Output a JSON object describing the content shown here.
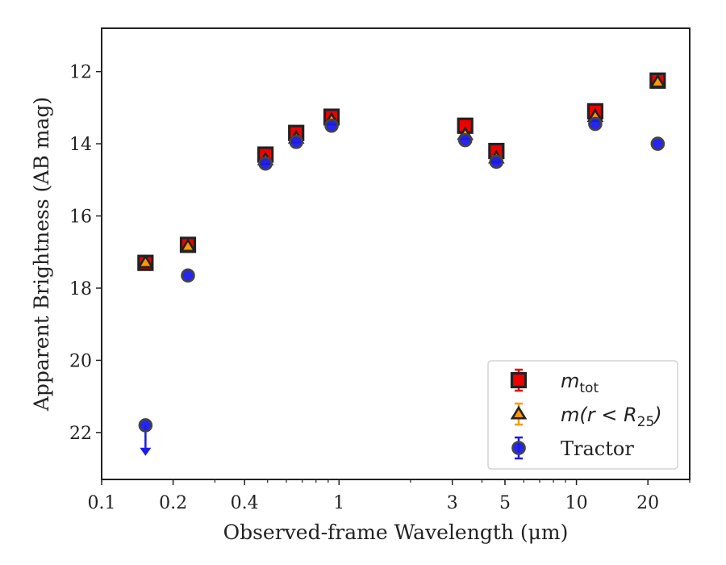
{
  "chart_data": {
    "type": "scatter",
    "title": "",
    "xlabel": "Observed-frame Wavelength (μm)",
    "ylabel": "Apparent Brightness (AB mag)",
    "xscale": "log",
    "xlim": [
      0.1,
      30
    ],
    "ylim": [
      23.3,
      10.8
    ],
    "y_inverted": true,
    "x_ticks": [
      {
        "value": 0.1,
        "label": "0.1"
      },
      {
        "value": 0.2,
        "label": "0.2"
      },
      {
        "value": 0.4,
        "label": "0.4"
      },
      {
        "value": 1,
        "label": "1"
      },
      {
        "value": 3,
        "label": "3"
      },
      {
        "value": 5,
        "label": "5"
      },
      {
        "value": 10,
        "label": "10"
      },
      {
        "value": 20,
        "label": "20"
      }
    ],
    "y_ticks": [
      12,
      14,
      16,
      18,
      20,
      22
    ],
    "legend_position": "lower-right",
    "series": [
      {
        "name": "m_tot",
        "label_main": "m",
        "label_sub": "tot",
        "marker": "square",
        "color": "#ee0000",
        "edge_color": "#222222",
        "x": [
          0.153,
          0.231,
          0.49,
          0.66,
          0.93,
          3.4,
          4.6,
          12.0,
          22.0
        ],
        "y": [
          17.3,
          16.8,
          14.3,
          13.7,
          13.25,
          13.5,
          14.2,
          13.1,
          12.25
        ]
      },
      {
        "name": "m(r<R_25)",
        "label_main": "m(r < R",
        "label_sub": "25",
        "label_end": ")",
        "marker": "triangle",
        "color": "#ff9900",
        "edge_color": "#222222",
        "x": [
          0.153,
          0.231,
          0.49,
          0.66,
          0.93,
          3.4,
          4.6,
          12.0,
          22.0
        ],
        "y": [
          17.3,
          16.85,
          14.45,
          13.85,
          13.35,
          13.75,
          14.4,
          13.25,
          12.3
        ]
      },
      {
        "name": "Tractor",
        "label_main": "Tractor",
        "marker": "circle",
        "color": "#1a1aee",
        "edge_color": "#444444",
        "x": [
          0.153,
          0.231,
          0.49,
          0.66,
          0.93,
          3.4,
          4.6,
          12.0,
          22.0
        ],
        "y": [
          21.8,
          17.65,
          14.55,
          13.95,
          13.5,
          13.9,
          14.5,
          13.45,
          14.0
        ],
        "upper_limit_index": 0
      }
    ]
  }
}
